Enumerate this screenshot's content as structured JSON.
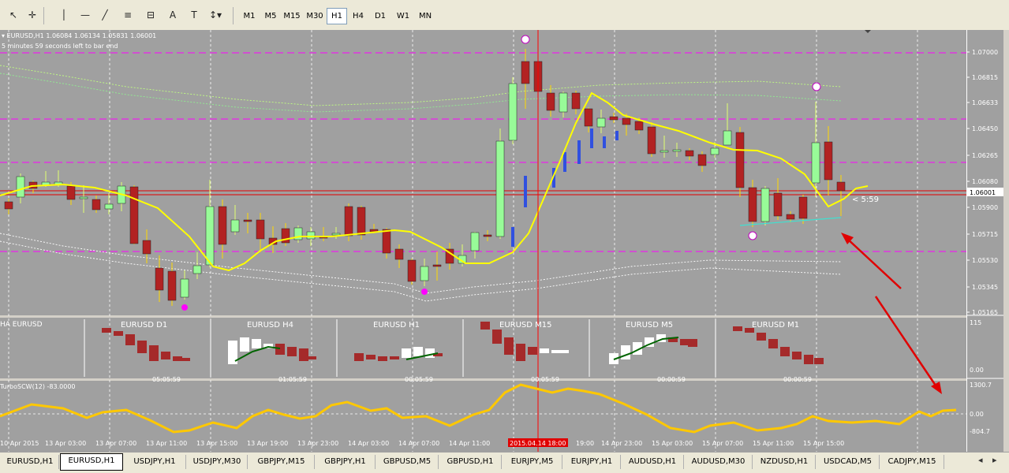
{
  "toolbar": {
    "tools": [
      {
        "name": "cursor-icon",
        "glyph": "↖"
      },
      {
        "name": "crosshair-icon",
        "glyph": "✛"
      },
      {
        "name": "vertical-line-icon",
        "glyph": "│"
      },
      {
        "name": "horizontal-line-icon",
        "glyph": "—"
      },
      {
        "name": "trendline-icon",
        "glyph": "╱"
      },
      {
        "name": "fibonacci-icon",
        "glyph": "≡"
      },
      {
        "name": "fibo-fan-icon",
        "glyph": "⊟"
      },
      {
        "name": "text-icon",
        "glyph": "A"
      },
      {
        "name": "label-icon",
        "glyph": "T"
      },
      {
        "name": "arrows-icon",
        "glyph": "↕▾"
      }
    ],
    "timeframes": [
      "M1",
      "M5",
      "M15",
      "M30",
      "H1",
      "H4",
      "D1",
      "W1",
      "MN"
    ],
    "active_timeframe": "H1"
  },
  "chart": {
    "header_symbol": "EURUSD,H1  1.06084 1.06134 1.05831 1.06001",
    "header_timer": "5 minutes 59 seconds left to bar end",
    "timer_label": "< 5:59",
    "current_price_label": "1.06001",
    "price_labels": [
      "1.07000",
      "1.06815",
      "1.06633",
      "1.06450",
      "1.06265",
      "1.06080",
      "1.05900",
      "1.05715",
      "1.05530",
      "1.05345",
      "1.05165"
    ],
    "time_labels": [
      "10 Apr 2015",
      "13 Apr 03:00",
      "13 Apr 07:00",
      "13 Apr 11:00",
      "13 Apr 15:00",
      "13 Apr 19:00",
      "13 Apr 23:00",
      "14 Apr 03:00",
      "14 Apr 07:00",
      "14 Apr 11:00",
      "2015.04.14 18:00",
      "19:00",
      "14 Apr 23:00",
      "15 Apr 03:00",
      "15 Apr 07:00",
      "15 Apr 11:00",
      "15 Apr 15:00"
    ],
    "ha_panel_title": "HA EURUSD",
    "ha_mini_titles": [
      "EURUSD D1",
      "EURUSD H4",
      "EURUSD H1",
      "EURUSD M15",
      "EURUSD M5",
      "EURUSD M1"
    ],
    "ha_mini_timers": [
      "05:05:59",
      "01:05:59",
      "00:05:59",
      "00:05:59",
      "00:00:59",
      "00:00:59"
    ],
    "ha_scale_labels": [
      "115",
      "0.00"
    ],
    "osc_title": "TurboSCW(12) -83.0000",
    "osc_scale_labels": [
      "1300.7",
      "0.00",
      "-804.7"
    ],
    "colors": {
      "bull": "#98fb98",
      "bear": "#b22222",
      "ma": "#ffff00",
      "grid_dash": "#ff00ff",
      "osc": "#ffc800",
      "cursor_line": "#ff0000"
    }
  },
  "tabs": [
    "EURUSD,H1",
    "EURUSD,H1",
    "USDJPY,H1",
    "USDJPY,M30",
    "GBPJPY,M15",
    "GBPJPY,H1",
    "GBPUSD,M5",
    "GBPUSD,H1",
    "EURJPY,M5",
    "EURJPY,H1",
    "AUDUSD,H1",
    "AUDUSD,M30",
    "NZDUSD,H1",
    "USDCAD,M5",
    "CADJPY,M15"
  ],
  "active_tab_index": 1,
  "tab_nav": [
    "◂",
    "▸"
  ]
}
